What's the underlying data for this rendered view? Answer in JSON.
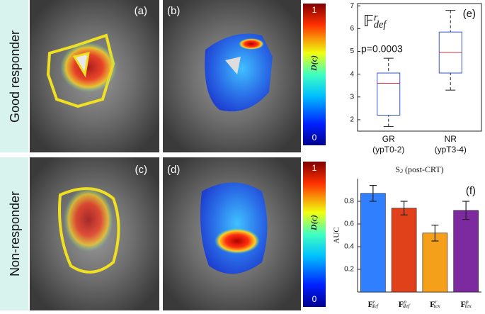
{
  "row_labels": [
    "Good responder",
    "Non-responder"
  ],
  "image_panels": [
    "(a)",
    "(b)",
    "(c)",
    "(d)"
  ],
  "colorbars": [
    {
      "label": "D(c)",
      "lim": [
        0,
        1
      ],
      "ticks": [
        0,
        1
      ]
    },
    {
      "label": "D(c)",
      "lim": [
        0,
        1
      ],
      "ticks": [
        0,
        1
      ]
    }
  ],
  "chart_data": [
    {
      "type": "box",
      "label": "(e)",
      "title": {
        "base": "𝔽",
        "sup": "r",
        "sub": "def"
      },
      "annotation": "p=0.0003",
      "categories": [
        "GR",
        "NR"
      ],
      "category_sublabels": [
        "(ypT0-2)",
        "(ypT3-4)"
      ],
      "stats": [
        {
          "whislo": 1.7,
          "q1": 2.2,
          "med": 3.6,
          "q3": 4.05,
          "whishi": 4.7
        },
        {
          "whislo": 3.3,
          "q1": 4.05,
          "med": 4.95,
          "q3": 5.85,
          "whishi": 6.8
        }
      ],
      "color": "#3355cc",
      "median_color": "#e0304a",
      "ylim": [
        1.5,
        7.1
      ],
      "yticks": [
        2,
        3,
        4,
        5,
        6,
        7
      ]
    },
    {
      "type": "bar",
      "label": "(f)",
      "title": {
        "base": "S",
        "sub": "3",
        "rest": " (post-CRT)"
      },
      "ylabel": "AUC",
      "categories": [
        {
          "base": "F",
          "sup": "r",
          "sub": "def"
        },
        {
          "base": "F",
          "sup": "p",
          "sub": "def"
        },
        {
          "base": "F",
          "sup": "r",
          "sub": "tex"
        },
        {
          "base": "F",
          "sup": "p",
          "sub": "tex"
        }
      ],
      "values": [
        0.87,
        0.74,
        0.52,
        0.72
      ],
      "errors": [
        0.07,
        0.06,
        0.07,
        0.08
      ],
      "colors": [
        "#2f7fff",
        "#e0401a",
        "#f5a01a",
        "#7d2aa0"
      ],
      "ylim": [
        0,
        1
      ],
      "yticks": [
        0.2,
        0.4,
        0.6,
        0.8
      ]
    }
  ]
}
